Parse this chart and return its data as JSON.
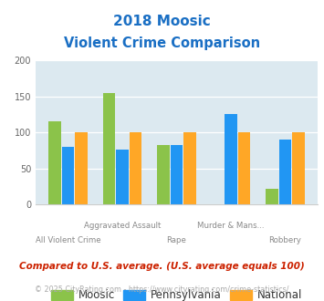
{
  "title_line1": "2018 Moosic",
  "title_line2": "Violent Crime Comparison",
  "categories": [
    "All Violent Crime",
    "Aggravated Assault",
    "Rape",
    "Murder & Mans...",
    "Robbery"
  ],
  "moosic": [
    115,
    155,
    83,
    0,
    22
  ],
  "pennsylvania": [
    80,
    76,
    83,
    125,
    90
  ],
  "national": [
    100,
    100,
    100,
    100,
    100
  ],
  "color_moosic": "#8bc34a",
  "color_pennsylvania": "#2196f3",
  "color_national": "#ffa726",
  "ylim": [
    0,
    200
  ],
  "yticks": [
    0,
    50,
    100,
    150,
    200
  ],
  "bg_color": "#dce9f0",
  "title_color": "#1a6fc4",
  "footer_note": "Compared to U.S. average. (U.S. average equals 100)",
  "footer_copy": "© 2025 CityRating.com - https://www.cityrating.com/crime-statistics/",
  "footer_note_color": "#cc2200",
  "footer_copy_color": "#aaaaaa",
  "footer_link_color": "#4488cc"
}
